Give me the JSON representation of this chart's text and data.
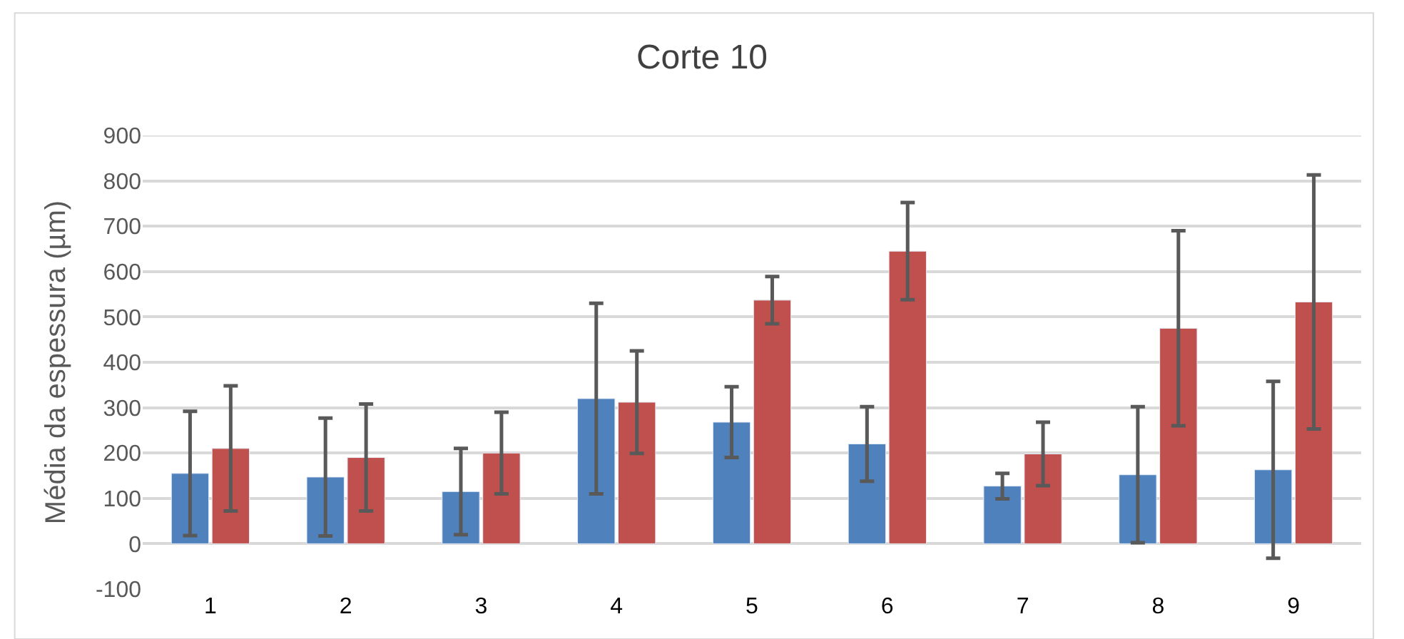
{
  "chart_data": {
    "type": "bar",
    "title": "Corte 10",
    "ylabel": "Média da espessura (µm)",
    "categories": [
      "1",
      "2",
      "3",
      "4",
      "5",
      "6",
      "7",
      "8",
      "9"
    ],
    "series": [
      {
        "color": "#4f81bd",
        "values": [
          155,
          147,
          115,
          320,
          268,
          220,
          127,
          152,
          163
        ],
        "errors": [
          137,
          130,
          95,
          210,
          78,
          82,
          28,
          150,
          195
        ]
      },
      {
        "color": "#c0504d",
        "values": [
          210,
          190,
          200,
          312,
          537,
          645,
          198,
          475,
          533
        ],
        "errors": [
          138,
          118,
          90,
          113,
          52,
          107,
          70,
          215,
          280
        ]
      }
    ],
    "ylim": [
      -100,
      900
    ],
    "yticks": [
      -100,
      0,
      100,
      200,
      300,
      400,
      500,
      600,
      700,
      800,
      900
    ],
    "grid": "y"
  }
}
